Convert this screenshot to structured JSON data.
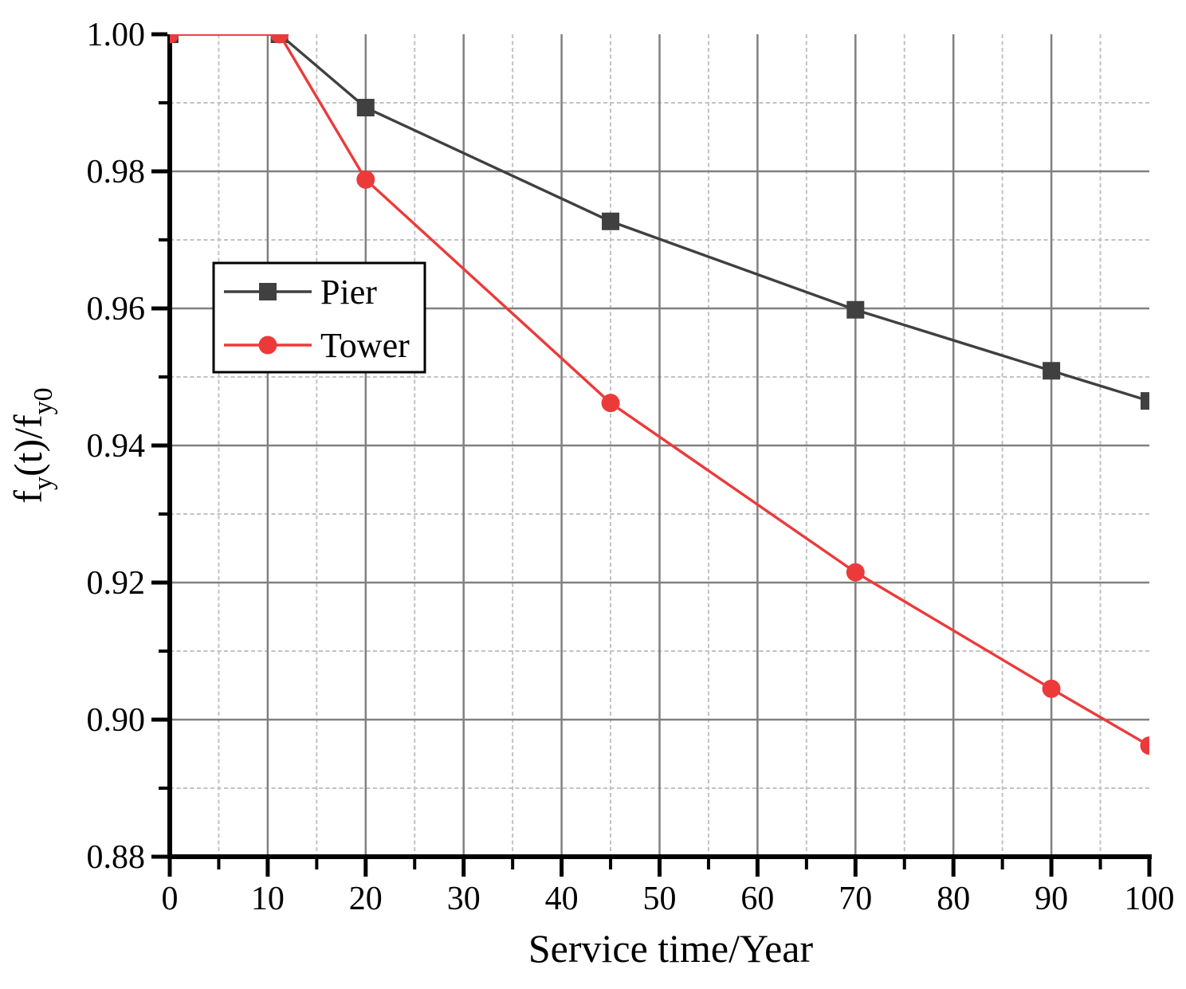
{
  "chart_data": {
    "type": "line",
    "title": "",
    "xlabel": "Service time/Year",
    "ylabel": "f_y(t)/f_y0",
    "ylabel_parts": [
      {
        "text": "f",
        "sub": false
      },
      {
        "text": "y",
        "sub": true
      },
      {
        "text": "(t)/f",
        "sub": false
      },
      {
        "text": "y0",
        "sub": true
      }
    ],
    "xlim": [
      0,
      100
    ],
    "ylim": [
      0.88,
      1.0
    ],
    "x_major_ticks": [
      0,
      10,
      20,
      30,
      40,
      50,
      60,
      70,
      80,
      90,
      100
    ],
    "x_tick_labels": [
      "0",
      "10",
      "20",
      "30",
      "40",
      "50",
      "60",
      "70",
      "80",
      "90",
      "100"
    ],
    "x_minor_ticks": [
      5,
      15,
      25,
      35,
      45,
      55,
      65,
      75,
      85,
      95
    ],
    "y_major_ticks": [
      1.0,
      0.98,
      0.96,
      0.94,
      0.92,
      0.9,
      0.88
    ],
    "y_tick_labels": [
      "1.00",
      "0.98",
      "0.96",
      "0.94",
      "0.92",
      "0.90",
      "0.88"
    ],
    "y_minor_ticks": [
      0.99,
      0.97,
      0.95,
      0.93,
      0.91,
      0.89
    ],
    "grid": {
      "major_color": "#808080",
      "minor_color": "#c2c2c2",
      "minor_style": "dashed",
      "on": true
    },
    "axis_color": "#000000",
    "background": "#ffffff",
    "x": [
      0,
      11.2,
      20,
      45,
      70,
      90,
      100
    ],
    "series": [
      {
        "name": "Pier",
        "color": "#404040",
        "marker": "square",
        "values": [
          1.0,
          1.0,
          0.9893,
          0.9727,
          0.9598,
          0.9509,
          0.9465
        ]
      },
      {
        "name": "Tower",
        "color": "#ec3a3a",
        "marker": "circle",
        "values": [
          1.0,
          1.0,
          0.9788,
          0.9462,
          0.9215,
          0.9045,
          0.8962
        ]
      }
    ],
    "legend": {
      "position": "upper-left-inside",
      "entries": [
        "Pier",
        "Tower"
      ]
    }
  }
}
